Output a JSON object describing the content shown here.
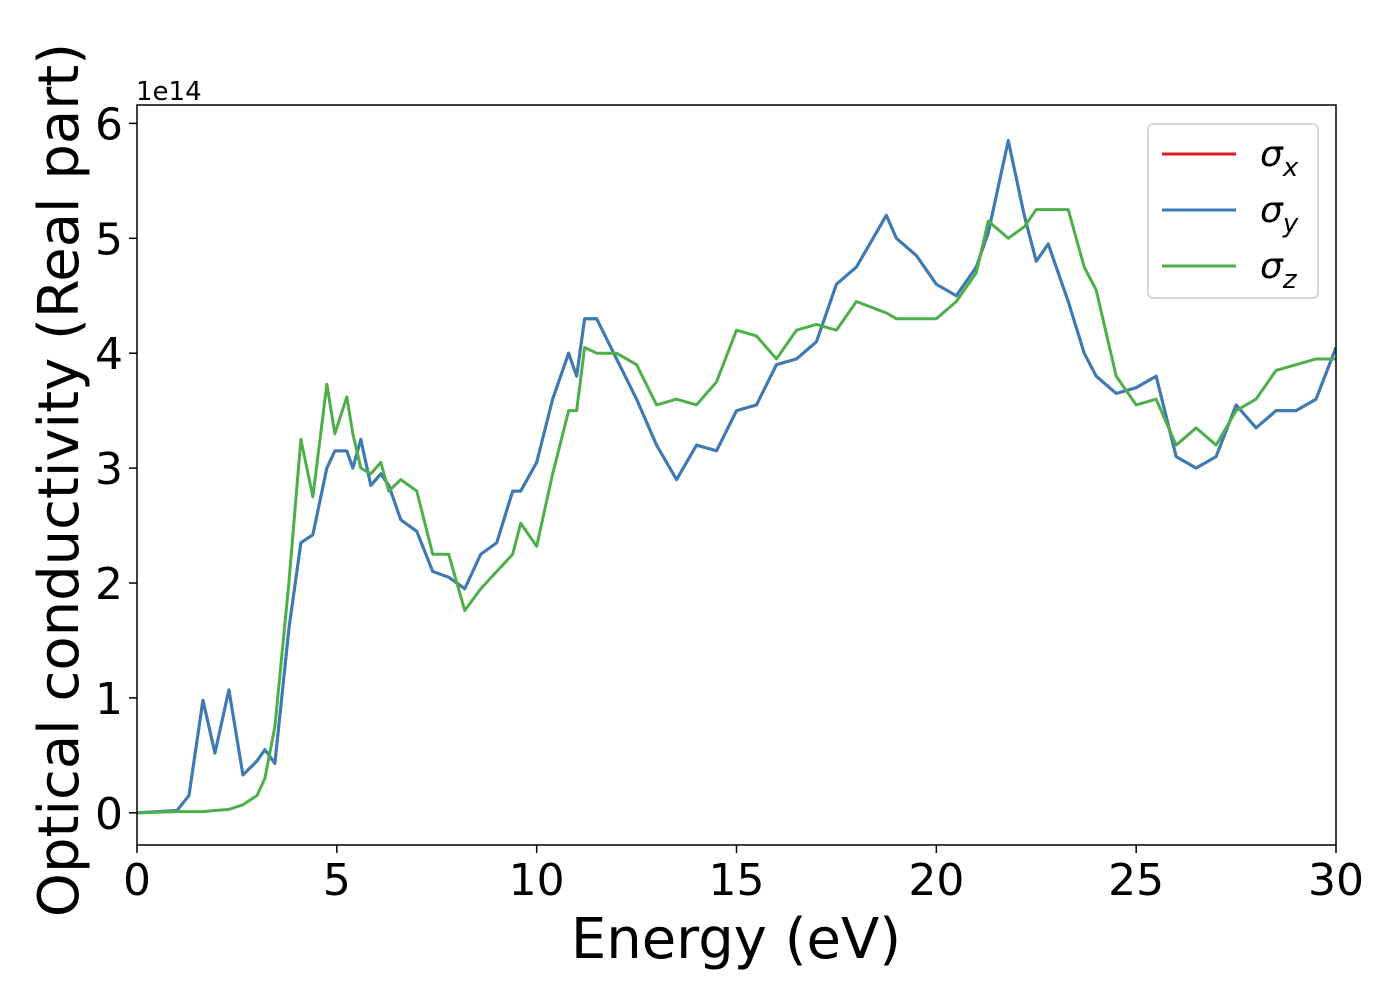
{
  "chart_data": {
    "type": "line",
    "xlabel": "Energy (eV)",
    "ylabel": "Optical conductivity (Real part)",
    "y_offset_label": "1e14",
    "x": [
      0,
      1.0,
      1.3,
      1.65,
      1.95,
      2.3,
      2.65,
      3.0,
      3.2,
      3.45,
      3.8,
      4.1,
      4.4,
      4.75,
      4.95,
      5.25,
      5.4,
      5.6,
      5.85,
      6.1,
      6.3,
      6.6,
      7.0,
      7.4,
      7.8,
      8.2,
      8.6,
      9.0,
      9.4,
      9.6,
      10.0,
      10.4,
      10.8,
      11.0,
      11.2,
      11.5,
      12.0,
      12.5,
      13.0,
      13.5,
      14.0,
      14.5,
      15.0,
      15.5,
      16.0,
      16.5,
      17.0,
      17.5,
      18.0,
      18.75,
      19.0,
      19.5,
      20.0,
      20.5,
      21.0,
      21.3,
      21.8,
      22.2,
      22.5,
      22.8,
      23.3,
      23.7,
      24.0,
      24.5,
      25.0,
      25.5,
      26.0,
      26.5,
      27.0,
      27.5,
      28.0,
      28.5,
      29.0,
      29.5,
      30.0
    ],
    "series": [
      {
        "name": "σx",
        "color": "#e41a1c",
        "values": [
          0,
          0.02,
          0.15,
          0.98,
          0.52,
          1.07,
          0.33,
          0.45,
          0.55,
          0.43,
          1.6,
          2.35,
          2.42,
          3.0,
          3.15,
          3.15,
          3.0,
          3.25,
          2.85,
          2.95,
          2.85,
          2.55,
          2.45,
          2.1,
          2.05,
          1.95,
          2.25,
          2.35,
          2.8,
          2.8,
          3.05,
          3.6,
          4.0,
          3.8,
          4.3,
          4.3,
          3.95,
          3.6,
          3.2,
          2.9,
          3.2,
          3.15,
          3.5,
          3.55,
          3.9,
          3.95,
          4.1,
          4.6,
          4.75,
          5.2,
          5.0,
          4.85,
          4.6,
          4.5,
          4.75,
          5.05,
          5.85,
          5.2,
          4.8,
          4.95,
          4.45,
          4.0,
          3.8,
          3.65,
          3.7,
          3.8,
          3.1,
          3.0,
          3.1,
          3.55,
          3.35,
          3.5,
          3.5,
          3.6,
          4.05
        ]
      },
      {
        "name": "σy",
        "color": "#377eb8",
        "values": [
          0,
          0.02,
          0.15,
          0.98,
          0.52,
          1.07,
          0.33,
          0.45,
          0.55,
          0.43,
          1.6,
          2.35,
          2.42,
          3.0,
          3.15,
          3.15,
          3.0,
          3.25,
          2.85,
          2.95,
          2.85,
          2.55,
          2.45,
          2.1,
          2.05,
          1.95,
          2.25,
          2.35,
          2.8,
          2.8,
          3.05,
          3.6,
          4.0,
          3.8,
          4.3,
          4.3,
          3.95,
          3.6,
          3.2,
          2.9,
          3.2,
          3.15,
          3.5,
          3.55,
          3.9,
          3.95,
          4.1,
          4.6,
          4.75,
          5.2,
          5.0,
          4.85,
          4.6,
          4.5,
          4.75,
          5.05,
          5.85,
          5.2,
          4.8,
          4.95,
          4.45,
          4.0,
          3.8,
          3.65,
          3.7,
          3.8,
          3.1,
          3.0,
          3.1,
          3.55,
          3.35,
          3.5,
          3.5,
          3.6,
          4.05
        ]
      },
      {
        "name": "σz",
        "color": "#4daf4a",
        "values": [
          0,
          0.01,
          0.01,
          0.01,
          0.02,
          0.03,
          0.07,
          0.15,
          0.3,
          0.75,
          2.0,
          3.25,
          2.75,
          3.73,
          3.3,
          3.62,
          3.3,
          3.0,
          2.95,
          3.05,
          2.8,
          2.9,
          2.8,
          2.25,
          2.25,
          1.76,
          1.95,
          2.1,
          2.25,
          2.52,
          2.32,
          2.95,
          3.5,
          3.5,
          4.05,
          4.0,
          4.0,
          3.9,
          3.55,
          3.6,
          3.55,
          3.75,
          4.2,
          4.15,
          3.95,
          4.2,
          4.25,
          4.2,
          4.45,
          4.35,
          4.3,
          4.3,
          4.3,
          4.45,
          4.7,
          5.15,
          5.0,
          5.1,
          5.25,
          5.25,
          5.25,
          4.75,
          4.55,
          3.8,
          3.55,
          3.6,
          3.2,
          3.35,
          3.2,
          3.5,
          3.6,
          3.85,
          3.9,
          3.95,
          3.95
        ]
      }
    ],
    "xlim": [
      0,
      30
    ],
    "xticks": [
      0,
      5,
      10,
      15,
      20,
      25,
      30
    ],
    "ylim": [
      -0.28,
      6.16
    ],
    "yticks": [
      0,
      1,
      2,
      3,
      4,
      5,
      6
    ],
    "legend": "upper right",
    "grid": false
  }
}
